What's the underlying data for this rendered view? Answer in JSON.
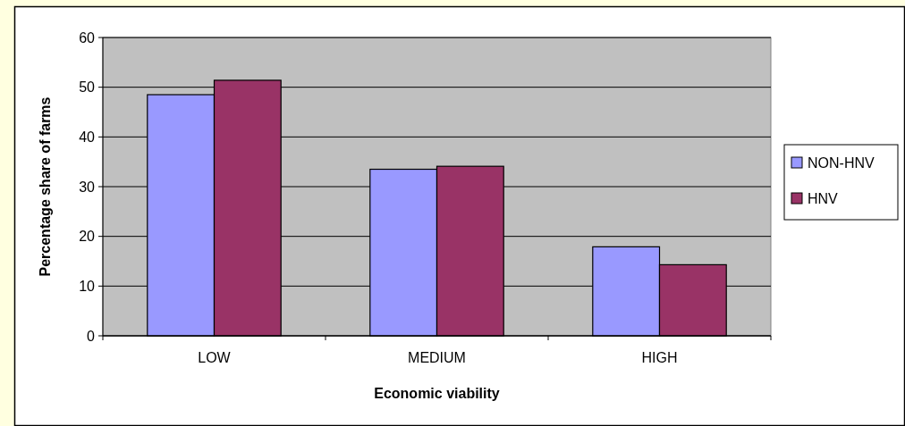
{
  "chart_data": {
    "type": "bar",
    "xlabel": "Economic viability",
    "ylabel": "Percentage share of farms",
    "categories": [
      "LOW",
      "MEDIUM",
      "HIGH"
    ],
    "series": [
      {
        "name": "NON-HNV",
        "color": "#9999ff",
        "values": [
          48.5,
          33.5,
          17.9
        ]
      },
      {
        "name": "HNV",
        "color": "#993366",
        "values": [
          51.4,
          34.1,
          14.3
        ]
      }
    ],
    "ylim": [
      0,
      60
    ],
    "yticks": [
      0,
      10,
      20,
      30,
      40,
      50,
      60
    ],
    "grid": "y",
    "legend": "right"
  }
}
